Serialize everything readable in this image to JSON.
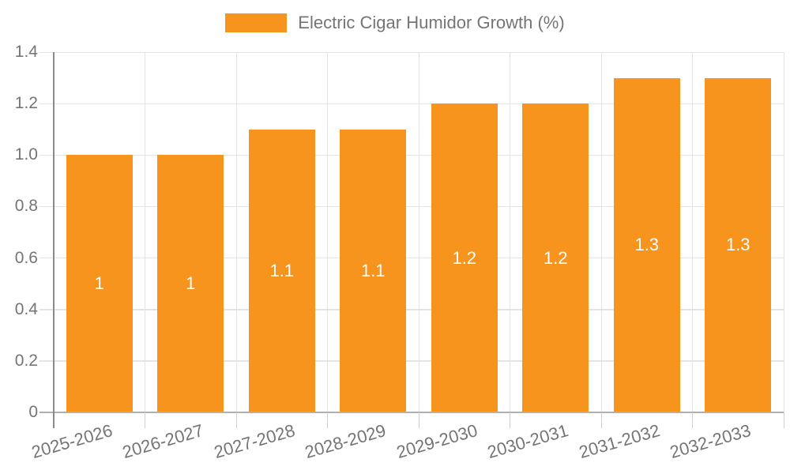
{
  "chart_data": {
    "type": "bar",
    "title": "",
    "legend": [
      "Electric Cigar Humidor Growth (%)"
    ],
    "legend_position": "top-center",
    "categories": [
      "2025-2026",
      "2026-2027",
      "2027-2028",
      "2028-2029",
      "2029-2030",
      "2030-2031",
      "2031-2032",
      "2032-2033"
    ],
    "values": [
      1,
      1,
      1.1,
      1.1,
      1.2,
      1.2,
      1.3,
      1.3
    ],
    "data_labels": [
      "1",
      "1",
      "1.1",
      "1.1",
      "1.2",
      "1.2",
      "1.3",
      "1.3"
    ],
    "xlabel": "",
    "ylabel": "",
    "ylim": [
      0,
      1.4
    ],
    "yticks": [
      "0",
      "0.2",
      "0.4",
      "0.6",
      "0.8",
      "1.0",
      "1.2",
      "1.4"
    ],
    "grid": true
  },
  "colors": {
    "bar": "#F7941E",
    "bar_label": "#FFFFFF",
    "grid_line": "#E4E4E4",
    "axis_line": "#B0B0B0",
    "y_axis_line": "#8A8A8A",
    "x_tick_line": "#CFCFCF",
    "axis_text": "#757575",
    "background": "#FFFFFF"
  }
}
